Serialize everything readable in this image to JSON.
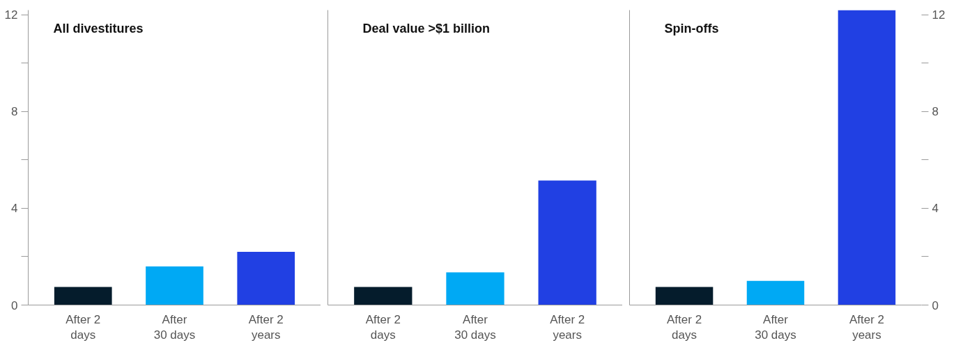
{
  "chart_data": [
    {
      "type": "bar",
      "title": "All divestitures",
      "categories": [
        "After 2\ndays",
        "After\n30 days",
        "After 2\nyears"
      ],
      "values": [
        0.75,
        1.6,
        2.2
      ],
      "colors": [
        "#051c2c",
        "#00a9f4",
        "#2140e3"
      ],
      "ylim": [
        0,
        12.2
      ],
      "yticks": [
        0,
        {
          "value": 2,
          "label": null
        },
        4,
        {
          "value": 6,
          "label": null
        },
        8,
        {
          "value": 10,
          "label": null
        },
        12
      ],
      "grid": false
    },
    {
      "type": "bar",
      "title": "Deal value >$1 billion",
      "categories": [
        "After 2\ndays",
        "After\n30 days",
        "After 2\nyears"
      ],
      "values": [
        0.75,
        1.35,
        5.15
      ],
      "colors": [
        "#051c2c",
        "#00a9f4",
        "#2140e3"
      ],
      "ylim": [
        0,
        12.2
      ],
      "yticks": [
        0,
        4,
        8,
        12
      ],
      "tick_labels": "x",
      "grid": false
    },
    {
      "type": "bar",
      "title": "Spin-offs",
      "categories": [
        "After 2\ndays",
        "After\n30 days",
        "After 2\nyears"
      ],
      "series": [
        {
          "axis": "y2",
          "values": [
            0.75,
            1.0,
            12.2
          ],
          "colors": [
            "#051c2c",
            "#00a9f4",
            "#2140e3"
          ]
        }
      ],
      "y2lim": [
        0,
        12.2
      ],
      "y2ticks": [
        0,
        {
          "value": 2,
          "label": null
        },
        4,
        {
          "value": 6,
          "label": null
        },
        8,
        {
          "value": 10,
          "label": null
        },
        12
      ],
      "grid": false
    }
  ]
}
